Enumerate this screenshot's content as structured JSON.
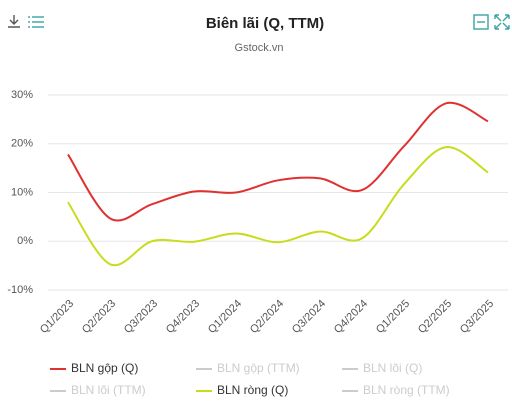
{
  "chart_data": {
    "type": "line",
    "title": "Biên lãi (Q, TTM)",
    "subtitle": "Gstock.vn",
    "categories": [
      "Q1/2023",
      "Q2/2023",
      "Q3/2023",
      "Q4/2023",
      "Q1/2024",
      "Q2/2024",
      "Q3/2024",
      "Q4/2024",
      "Q1/2025",
      "Q2/2025",
      "Q3/2025"
    ],
    "series": [
      {
        "name": "BLN gộp (Q)",
        "color": "#e03131",
        "visible": true,
        "values": [
          17.8,
          4.7,
          7.6,
          10.2,
          10.0,
          12.5,
          12.9,
          10.5,
          19.5,
          28.3,
          24.6
        ]
      },
      {
        "name": "BLN gộp (TTM)",
        "color": "#cccccc",
        "visible": false,
        "values": [
          null,
          null,
          null,
          null,
          null,
          null,
          null,
          null,
          null,
          null,
          null
        ]
      },
      {
        "name": "BLN lõi (Q)",
        "color": "#cccccc",
        "visible": false,
        "values": [
          null,
          null,
          null,
          null,
          null,
          null,
          null,
          null,
          null,
          null,
          null
        ]
      },
      {
        "name": "BLN lõi (TTM)",
        "color": "#cccccc",
        "visible": false,
        "values": [
          null,
          null,
          null,
          null,
          null,
          null,
          null,
          null,
          null,
          null,
          null
        ]
      },
      {
        "name": "BLN ròng (Q)",
        "color": "#c8dc1e",
        "visible": true,
        "values": [
          8.0,
          -4.7,
          0.0,
          -0.1,
          1.6,
          -0.2,
          2.0,
          0.6,
          11.7,
          19.3,
          14.1
        ]
      },
      {
        "name": "BLN ròng (TTM)",
        "color": "#cccccc",
        "visible": false,
        "values": [
          null,
          null,
          null,
          null,
          null,
          null,
          null,
          null,
          null,
          null,
          null
        ]
      }
    ],
    "ylim": [
      -10,
      30
    ],
    "yticks": [
      {
        "value": -10,
        "label": "-10%"
      },
      {
        "value": 0,
        "label": "0%"
      },
      {
        "value": 10,
        "label": "10%"
      },
      {
        "value": 20,
        "label": "20%"
      },
      {
        "value": 30,
        "label": "30%"
      }
    ],
    "grid": true,
    "legend": "bottom"
  }
}
